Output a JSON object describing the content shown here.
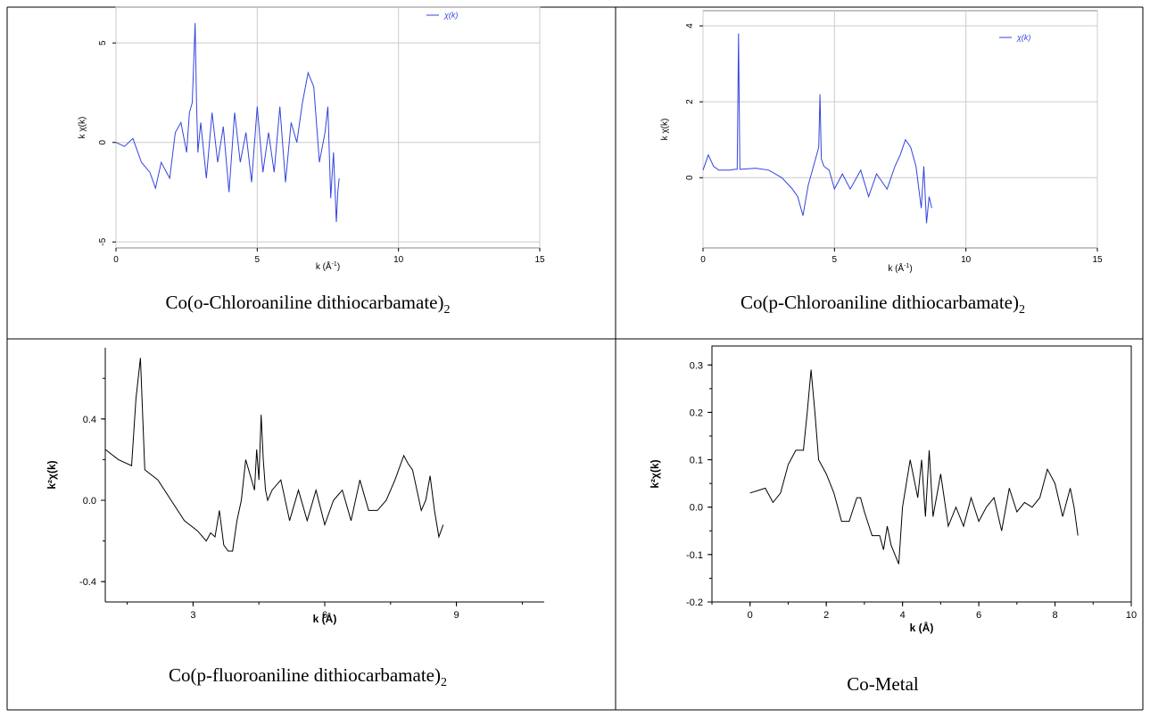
{
  "colors": {
    "blue_trace": "#3344dd",
    "black_trace": "#000000",
    "grid": "#cccccc",
    "border": "#000000"
  },
  "legend_label": "χ(k)",
  "chart_data": [
    {
      "type": "line",
      "caption": "Co(o-Chloroaniline dithiocarbamate)",
      "caption_sub": "2",
      "xlabel": "k (Å",
      "xlabel_sup": "-1",
      "xlabel_end": ")",
      "ylabel": "k χ(k)",
      "xlim": [
        0,
        15
      ],
      "ylim": [
        -5.3,
        6.8
      ],
      "xticks": [
        "0",
        "5",
        "10",
        "15"
      ],
      "yticks": [
        "-5",
        "0",
        "5"
      ],
      "grid": true,
      "legend": "top-right",
      "series": [
        {
          "name": "χ(k)",
          "x": [
            0,
            0.3,
            0.6,
            0.9,
            1.2,
            1.4,
            1.6,
            1.9,
            2.1,
            2.3,
            2.5,
            2.6,
            2.7,
            2.75,
            2.8,
            2.85,
            2.9,
            3.0,
            3.2,
            3.4,
            3.6,
            3.8,
            4.0,
            4.2,
            4.4,
            4.6,
            4.8,
            5.0,
            5.2,
            5.4,
            5.6,
            5.8,
            6.0,
            6.2,
            6.4,
            6.6,
            6.8,
            7.0,
            7.2,
            7.4,
            7.5,
            7.6,
            7.7,
            7.8,
            7.85,
            7.9
          ],
          "y": [
            0,
            -0.2,
            0.2,
            -1.0,
            -1.5,
            -2.3,
            -1.0,
            -1.8,
            0.5,
            1.0,
            -0.5,
            1.5,
            2.0,
            4.0,
            6.0,
            2.0,
            -0.5,
            1.0,
            -1.8,
            1.5,
            -1.0,
            0.8,
            -2.5,
            1.5,
            -1.0,
            0.5,
            -2.0,
            1.8,
            -1.5,
            0.5,
            -1.5,
            1.8,
            -2.0,
            1.0,
            0.0,
            2.0,
            3.5,
            2.8,
            -1.0,
            0.5,
            1.8,
            -2.8,
            -0.5,
            -4.0,
            -2.5,
            -1.8
          ]
        }
      ]
    },
    {
      "type": "line",
      "caption": "Co(p-Chloroaniline dithiocarbamate)",
      "caption_sub": "2",
      "xlabel": "k (Å",
      "xlabel_sup": "-1",
      "xlabel_end": ")",
      "ylabel": "k χ(k)",
      "xlim": [
        0,
        15
      ],
      "ylim": [
        -1.85,
        4.4
      ],
      "xticks": [
        "0",
        "5",
        "10",
        "15"
      ],
      "yticks": [
        "0",
        "2",
        "4"
      ],
      "grid": true,
      "legend": "top-right",
      "series": [
        {
          "name": "χ(k)",
          "x": [
            0,
            0.2,
            0.4,
            0.6,
            0.8,
            1.0,
            1.2,
            1.3,
            1.35,
            1.4,
            1.6,
            2.0,
            2.5,
            3.0,
            3.4,
            3.6,
            3.8,
            4.0,
            4.2,
            4.4,
            4.45,
            4.5,
            4.6,
            4.8,
            5.0,
            5.3,
            5.6,
            6.0,
            6.3,
            6.6,
            7.0,
            7.3,
            7.5,
            7.7,
            7.9,
            8.1,
            8.3,
            8.4,
            8.5,
            8.6,
            8.7
          ],
          "y": [
            0.2,
            0.6,
            0.3,
            0.2,
            0.2,
            0.2,
            0.22,
            0.22,
            3.8,
            0.22,
            0.23,
            0.25,
            0.2,
            0.0,
            -0.3,
            -0.5,
            -1.0,
            -0.2,
            0.3,
            0.8,
            2.2,
            0.5,
            0.3,
            0.2,
            -0.3,
            0.1,
            -0.3,
            0.2,
            -0.5,
            0.1,
            -0.3,
            0.3,
            0.6,
            1.0,
            0.8,
            0.3,
            -0.8,
            0.3,
            -1.2,
            -0.5,
            -0.8
          ]
        }
      ]
    },
    {
      "type": "line",
      "caption": "Co(p-fluoroaniline dithiocarbamate)",
      "caption_sub": "2",
      "xlabel": "k (Å)",
      "ylabel": "k²χ(k)",
      "xlim": [
        1,
        11
      ],
      "ylim": [
        -0.5,
        0.75
      ],
      "xticks": [
        "3",
        "6",
        "9"
      ],
      "yticks": [
        "-0.4",
        "0.0",
        "0.4"
      ],
      "grid": false,
      "series": [
        {
          "name": "",
          "x": [
            1.0,
            1.3,
            1.6,
            1.7,
            1.8,
            1.9,
            2.2,
            2.5,
            2.8,
            3.1,
            3.3,
            3.4,
            3.5,
            3.6,
            3.7,
            3.8,
            3.9,
            4.0,
            4.1,
            4.2,
            4.4,
            4.45,
            4.5,
            4.55,
            4.6,
            4.65,
            4.7,
            4.8,
            5.0,
            5.2,
            5.4,
            5.6,
            5.8,
            6.0,
            6.2,
            6.4,
            6.6,
            6.8,
            7.0,
            7.2,
            7.4,
            7.6,
            7.8,
            7.9,
            8.0,
            8.2,
            8.3,
            8.4,
            8.5,
            8.6,
            8.7
          ],
          "y": [
            0.25,
            0.2,
            0.17,
            0.5,
            0.7,
            0.15,
            0.1,
            0.0,
            -0.1,
            -0.15,
            -0.2,
            -0.16,
            -0.18,
            -0.05,
            -0.22,
            -0.25,
            -0.25,
            -0.1,
            0.0,
            0.2,
            0.05,
            0.25,
            0.1,
            0.42,
            0.2,
            0.05,
            0.0,
            0.05,
            0.1,
            -0.1,
            0.05,
            -0.1,
            0.05,
            -0.12,
            0.0,
            0.05,
            -0.1,
            0.1,
            -0.05,
            -0.05,
            0.0,
            0.1,
            0.22,
            0.18,
            0.15,
            -0.05,
            0.0,
            0.12,
            -0.05,
            -0.18,
            -0.12
          ]
        }
      ]
    },
    {
      "type": "line",
      "caption": "Co-Metal",
      "xlabel": "k (Å)",
      "ylabel": "k²χ(k)",
      "xlim": [
        -1,
        10
      ],
      "ylim": [
        -0.2,
        0.34
      ],
      "xticks": [
        "0",
        "2",
        "4",
        "6",
        "8",
        "10"
      ],
      "yticks": [
        "-0.2",
        "-0.1",
        "0.0",
        "0.1",
        "0.2",
        "0.3"
      ],
      "grid": false,
      "series": [
        {
          "name": "",
          "x": [
            0.0,
            0.2,
            0.4,
            0.6,
            0.8,
            1.0,
            1.2,
            1.4,
            1.5,
            1.6,
            1.7,
            1.8,
            2.0,
            2.2,
            2.4,
            2.6,
            2.8,
            2.9,
            3.0,
            3.2,
            3.4,
            3.5,
            3.6,
            3.7,
            3.8,
            3.9,
            4.0,
            4.2,
            4.4,
            4.5,
            4.6,
            4.7,
            4.8,
            5.0,
            5.2,
            5.4,
            5.6,
            5.8,
            6.0,
            6.2,
            6.4,
            6.6,
            6.8,
            7.0,
            7.2,
            7.4,
            7.6,
            7.8,
            8.0,
            8.2,
            8.4,
            8.5,
            8.6
          ],
          "y": [
            0.03,
            0.035,
            0.04,
            0.01,
            0.03,
            0.09,
            0.12,
            0.12,
            0.2,
            0.29,
            0.2,
            0.1,
            0.07,
            0.03,
            -0.03,
            -0.03,
            0.02,
            0.02,
            -0.01,
            -0.06,
            -0.06,
            -0.09,
            -0.04,
            -0.08,
            -0.1,
            -0.12,
            0.0,
            0.1,
            0.02,
            0.1,
            -0.02,
            0.12,
            -0.02,
            0.07,
            -0.04,
            0.0,
            -0.04,
            0.02,
            -0.03,
            0.0,
            0.02,
            -0.05,
            0.04,
            -0.01,
            0.01,
            0.0,
            0.02,
            0.08,
            0.05,
            -0.02,
            0.04,
            0.0,
            -0.06
          ]
        }
      ]
    }
  ]
}
